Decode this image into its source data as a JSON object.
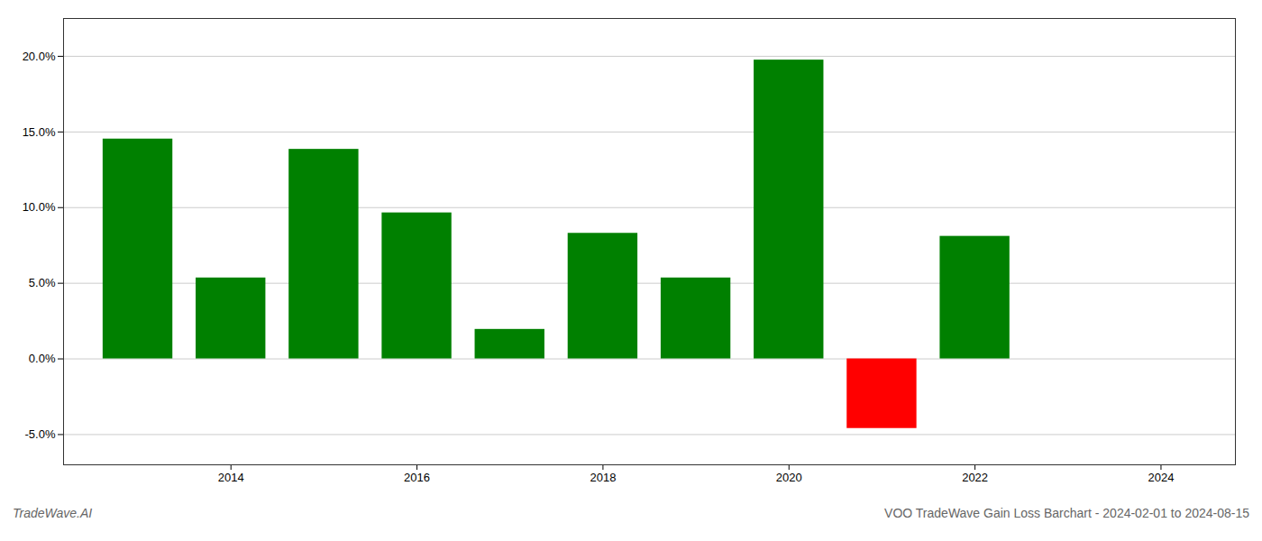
{
  "chart_data": {
    "type": "bar",
    "title": "VOO TradeWave Gain Loss Barchart - 2024-02-01 to 2024-08-15",
    "annotations": [
      "TradeWave.AI"
    ],
    "x": [
      2013,
      2014,
      2015,
      2016,
      2017,
      2018,
      2019,
      2020,
      2021,
      2022,
      2023
    ],
    "values": [
      0.1453,
      0.0535,
      0.1385,
      0.0965,
      0.0195,
      0.083,
      0.0535,
      0.1975,
      -0.046,
      0.081,
      0.0
    ],
    "colors": [
      "#008000",
      "#008000",
      "#008000",
      "#008000",
      "#008000",
      "#008000",
      "#008000",
      "#008000",
      "#ff0000",
      "#008000",
      "#008000"
    ],
    "xlim": [
      2012.2,
      2024.8
    ],
    "xticks": [
      2014,
      2016,
      2018,
      2020,
      2022,
      2024
    ],
    "ylim": [
      -0.07,
      0.225
    ],
    "yticks": [
      {
        "value": -0.05,
        "label": "-5.0%"
      },
      {
        "value": 0.0,
        "label": "0.0%"
      },
      {
        "value": 0.05,
        "label": "5.0%"
      },
      {
        "value": 0.1,
        "label": "10.0%"
      },
      {
        "value": 0.15,
        "label": "15.0%"
      },
      {
        "value": 0.2,
        "label": "20.0%"
      }
    ],
    "grid": true
  }
}
